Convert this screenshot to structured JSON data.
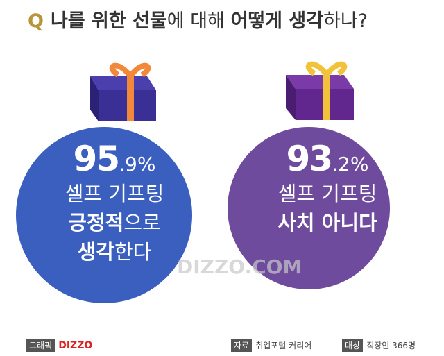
{
  "header": {
    "marker": "Q",
    "segments": [
      {
        "text": "나를 위한 선물",
        "bold": true
      },
      {
        "text": "에 대해 ",
        "bold": false
      },
      {
        "text": "어떻게 생각",
        "bold": true
      },
      {
        "text": "하나?",
        "bold": false
      }
    ]
  },
  "cards": [
    {
      "stat": "95.9%",
      "color": "#3b5fbf",
      "lines": [
        [
          {
            "text": "셀프 기프팅",
            "bold": false
          }
        ],
        [
          {
            "text": "긍정적",
            "bold": true
          },
          {
            "text": "으로",
            "bold": false
          }
        ],
        [
          {
            "text": "생각",
            "bold": true
          },
          {
            "text": "한다",
            "bold": false
          }
        ]
      ]
    },
    {
      "stat": "93.2%",
      "color": "#6f4b9d",
      "lines": [
        [
          {
            "text": "셀프 기프팅",
            "bold": false
          }
        ],
        [
          {
            "text": "사치 아니다",
            "bold": true
          }
        ]
      ]
    }
  ],
  "watermark": "DIZZO.COM",
  "footer": {
    "graphic_label": "그래픽",
    "brand": "DIZZO",
    "source_label": "자료",
    "source": "취업포털 커리어",
    "target_label": "대상",
    "target": "직장인 366명"
  }
}
